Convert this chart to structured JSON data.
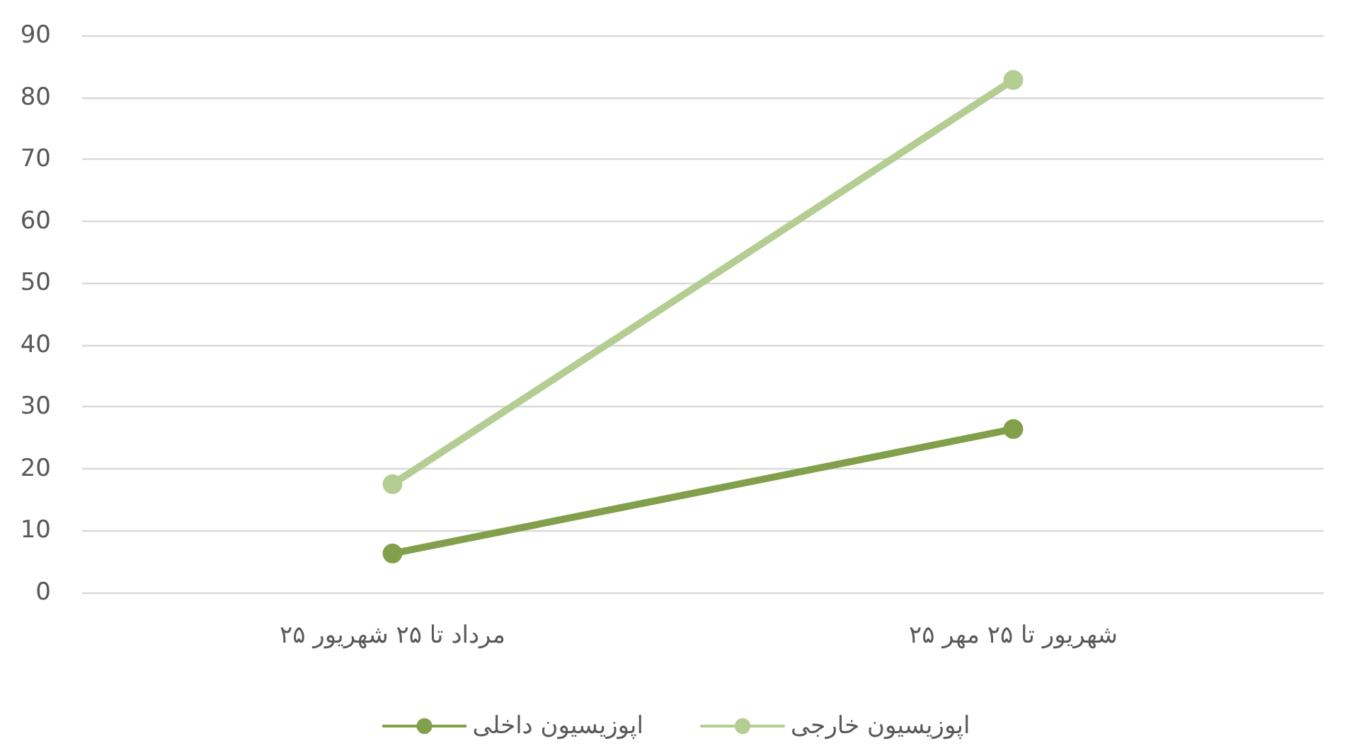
{
  "chart_data": {
    "type": "line",
    "categories": [
      "۲۵ مرداد تا ۲۵ شهریور",
      "۲۵ شهریور تا ۲۵ مهر"
    ],
    "series": [
      {
        "name": "اپوزیسیون داخلی",
        "color": "#82a04c",
        "values": [
          6.3,
          26.4
        ]
      },
      {
        "name": "اپوزیسیون خارجی",
        "color": "#b3cd92",
        "values": [
          17.5,
          82.8
        ]
      }
    ],
    "ylim": [
      0,
      90
    ],
    "yticks": [
      0,
      10,
      20,
      30,
      40,
      50,
      60,
      70,
      80,
      90
    ],
    "grid": "y",
    "legend": "bottom",
    "marker": "circle",
    "line_style": "solid"
  }
}
